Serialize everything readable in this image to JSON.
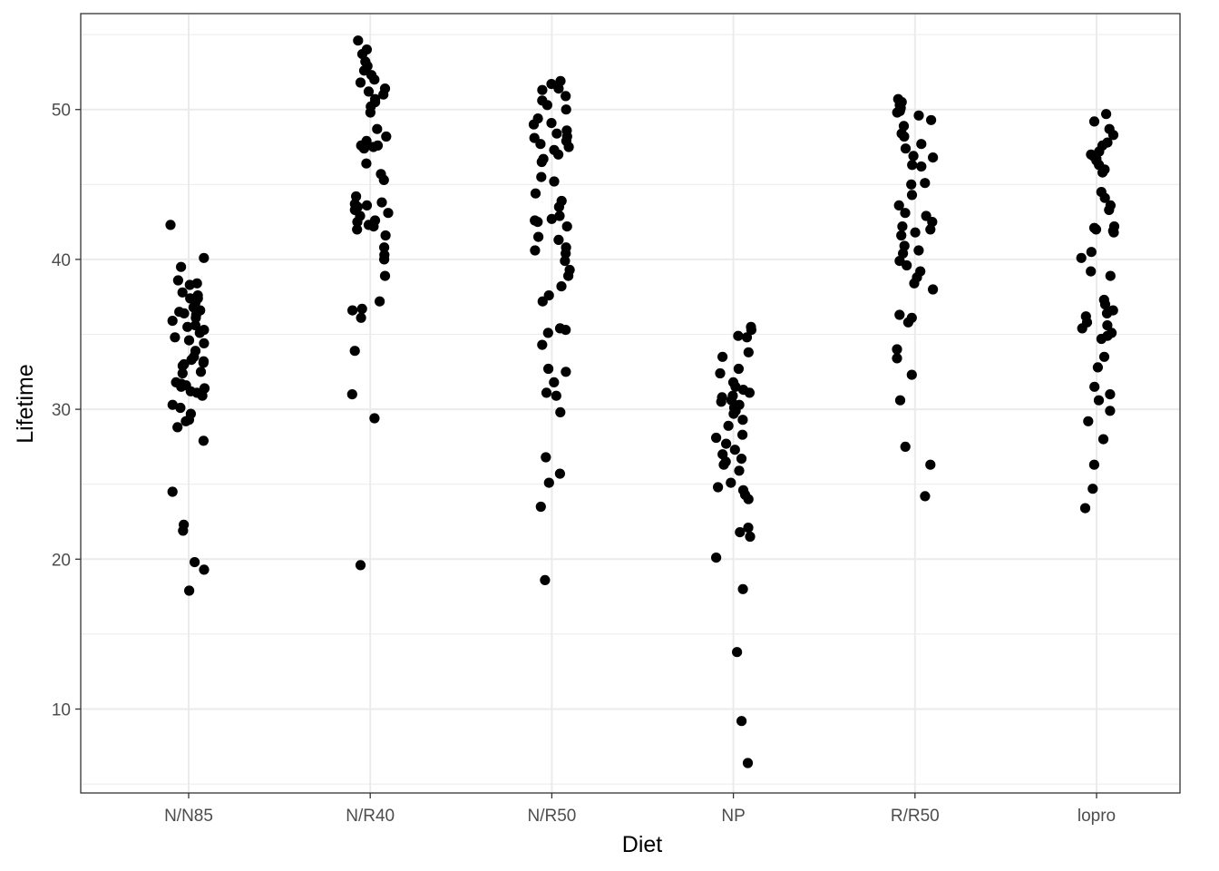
{
  "chart_data": {
    "type": "scatter",
    "subtype": "jitter strip plot",
    "xlabel": "Diet",
    "ylabel": "Lifetime",
    "categories": [
      "N/N85",
      "N/R40",
      "N/R50",
      "NP",
      "R/R50",
      "lopro"
    ],
    "y_ticks": [
      10,
      20,
      30,
      40,
      50
    ],
    "ylim": [
      4.4,
      56.4
    ],
    "grid": true,
    "theme": "black-and-white",
    "point_color": "#000000",
    "groups": [
      {
        "category": "N/N85",
        "values": [
          42.3,
          40.1,
          39.5,
          38.6,
          38.4,
          38.3,
          37.8,
          37.6,
          37.4,
          37.4,
          37.1,
          36.8,
          36.6,
          36.5,
          36.4,
          36.3,
          36.1,
          35.9,
          35.6,
          35.5,
          35.3,
          35.1,
          34.8,
          34.6,
          34.4,
          33.9,
          33.5,
          33.3,
          33.2,
          33.1,
          33.0,
          32.9,
          32.5,
          32.4,
          31.8,
          31.7,
          31.6,
          31.5,
          31.4,
          31.2,
          31.1,
          30.9,
          30.3,
          30.1,
          29.7,
          29.3,
          29.2,
          28.8,
          27.9,
          24.5,
          22.3,
          21.9,
          19.8,
          19.3,
          17.9
        ]
      },
      {
        "category": "N/R40",
        "values": [
          54.6,
          54.0,
          53.7,
          53.2,
          52.9,
          52.6,
          52.3,
          52.0,
          51.8,
          51.4,
          51.2,
          51.0,
          50.7,
          50.5,
          50.2,
          49.8,
          48.7,
          48.2,
          47.9,
          47.6,
          47.6,
          47.5,
          47.5,
          47.4,
          46.4,
          45.7,
          45.3,
          44.2,
          43.8,
          43.7,
          43.6,
          43.5,
          43.3,
          43.1,
          42.9,
          42.6,
          42.5,
          42.3,
          42.2,
          42.0,
          41.6,
          40.8,
          40.3,
          40.0,
          38.9,
          37.2,
          36.7,
          36.6,
          36.1,
          33.9,
          31.0,
          29.4,
          19.6
        ]
      },
      {
        "category": "N/R50",
        "values": [
          51.9,
          51.7,
          51.4,
          51.3,
          50.9,
          50.6,
          50.3,
          50.0,
          49.4,
          49.1,
          49.0,
          48.6,
          48.4,
          48.2,
          48.1,
          47.9,
          47.7,
          47.5,
          47.3,
          47.0,
          46.7,
          46.5,
          45.5,
          45.2,
          44.4,
          43.9,
          43.5,
          42.9,
          42.7,
          42.6,
          42.5,
          42.2,
          41.5,
          41.3,
          40.8,
          40.6,
          40.4,
          39.9,
          39.3,
          38.9,
          38.2,
          37.6,
          37.2,
          35.4,
          35.3,
          35.1,
          34.3,
          32.7,
          32.5,
          31.8,
          31.1,
          30.9,
          29.8,
          26.8,
          25.7,
          25.1,
          23.5,
          18.6
        ]
      },
      {
        "category": "NP",
        "values": [
          35.5,
          35.3,
          34.9,
          34.8,
          33.8,
          33.5,
          32.7,
          32.4,
          31.8,
          31.5,
          31.3,
          31.1,
          30.9,
          30.8,
          30.6,
          30.5,
          30.3,
          30.1,
          29.9,
          29.7,
          29.3,
          28.9,
          28.3,
          28.1,
          27.7,
          27.3,
          27.0,
          26.7,
          26.5,
          26.3,
          25.9,
          25.1,
          24.8,
          24.6,
          24.3,
          24.0,
          22.1,
          21.8,
          21.5,
          20.1,
          18.0,
          13.8,
          9.2,
          6.4
        ]
      },
      {
        "category": "R/R50",
        "values": [
          50.7,
          50.5,
          50.3,
          50.1,
          49.9,
          49.8,
          49.6,
          49.3,
          48.9,
          48.4,
          48.2,
          47.7,
          47.4,
          46.9,
          46.8,
          46.3,
          46.2,
          45.1,
          45.0,
          44.3,
          43.6,
          43.1,
          42.9,
          42.5,
          42.2,
          42.0,
          41.8,
          41.6,
          40.9,
          40.6,
          40.4,
          39.9,
          39.6,
          39.2,
          38.8,
          38.4,
          38.0,
          36.3,
          36.1,
          35.8,
          34.0,
          33.4,
          32.3,
          30.6,
          27.5,
          26.3,
          24.2
        ]
      },
      {
        "category": "lopro",
        "values": [
          49.7,
          49.2,
          48.7,
          48.3,
          47.8,
          47.6,
          47.2,
          47.0,
          46.9,
          46.7,
          46.6,
          46.3,
          46.0,
          45.8,
          44.5,
          44.1,
          43.6,
          43.3,
          42.2,
          42.1,
          42.0,
          41.9,
          41.8,
          40.5,
          40.1,
          39.2,
          38.9,
          37.3,
          37.0,
          36.6,
          36.4,
          36.2,
          35.8,
          35.6,
          35.4,
          35.1,
          34.9,
          34.7,
          33.5,
          32.8,
          31.5,
          31.0,
          30.6,
          29.9,
          29.2,
          28.0,
          26.3,
          24.7,
          23.4
        ]
      }
    ]
  }
}
